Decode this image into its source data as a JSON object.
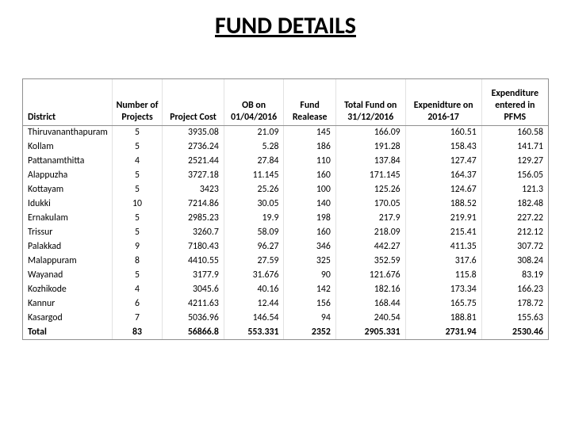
{
  "title": "FUND DETAILS",
  "table": {
    "type": "table",
    "background_color": "#ffffff",
    "outer_border_color": "#8f8f8f",
    "grid_color": "#e2e2e2",
    "header_font_weight": 700,
    "body_font_size": 11.8,
    "columns": [
      {
        "label": "District",
        "align": "left"
      },
      {
        "label": "Number of Projects",
        "align": "center"
      },
      {
        "label": "Project Cost",
        "align": "right"
      },
      {
        "label": "OB on 01/04/2016",
        "align": "right"
      },
      {
        "label": "Fund Realease",
        "align": "right"
      },
      {
        "label": "Total Fund on 31/12/2016",
        "align": "right"
      },
      {
        "label": "Expenidture on 2016-17",
        "align": "right"
      },
      {
        "label": "Expenditure entered in PFMS",
        "align": "right"
      }
    ],
    "rows": [
      [
        "Thiruvananthapuram",
        "5",
        "3935.08",
        "21.09",
        "145",
        "166.09",
        "160.51",
        "160.58"
      ],
      [
        "Kollam",
        "5",
        "2736.24",
        "5.28",
        "186",
        "191.28",
        "158.43",
        "141.71"
      ],
      [
        "Pattanamthitta",
        "4",
        "2521.44",
        "27.84",
        "110",
        "137.84",
        "127.47",
        "129.27"
      ],
      [
        "Alappuzha",
        "5",
        "3727.18",
        "11.145",
        "160",
        "171.145",
        "164.37",
        "156.05"
      ],
      [
        "Kottayam",
        "5",
        "3423",
        "25.26",
        "100",
        "125.26",
        "124.67",
        "121.3"
      ],
      [
        "Idukki",
        "10",
        "7214.86",
        "30.05",
        "140",
        "170.05",
        "188.52",
        "182.48"
      ],
      [
        "Ernakulam",
        "5",
        "2985.23",
        "19.9",
        "198",
        "217.9",
        "219.91",
        "227.22"
      ],
      [
        "Trissur",
        "5",
        "3260.7",
        "58.09",
        "160",
        "218.09",
        "215.41",
        "212.12"
      ],
      [
        "Palakkad",
        "9",
        "7180.43",
        "96.27",
        "346",
        "442.27",
        "411.35",
        "307.72"
      ],
      [
        "Malappuram",
        "8",
        "4410.55",
        "27.59",
        "325",
        "352.59",
        "317.6",
        "308.24"
      ],
      [
        "Wayanad",
        "5",
        "3177.9",
        "31.676",
        "90",
        "121.676",
        "115.8",
        "83.19"
      ],
      [
        "Kozhikode",
        "4",
        "3045.6",
        "40.16",
        "142",
        "182.16",
        "173.34",
        "166.23"
      ],
      [
        "Kannur",
        "6",
        "4211.63",
        "12.44",
        "156",
        "168.44",
        "165.75",
        "178.72"
      ],
      [
        "Kasargod",
        "7",
        "5036.96",
        "146.54",
        "94",
        "240.54",
        "188.81",
        "155.63"
      ]
    ],
    "total_row": [
      "Total",
      "83",
      "56866.8",
      "553.331",
      "2352",
      "2905.331",
      "2731.94",
      "2530.46"
    ]
  }
}
